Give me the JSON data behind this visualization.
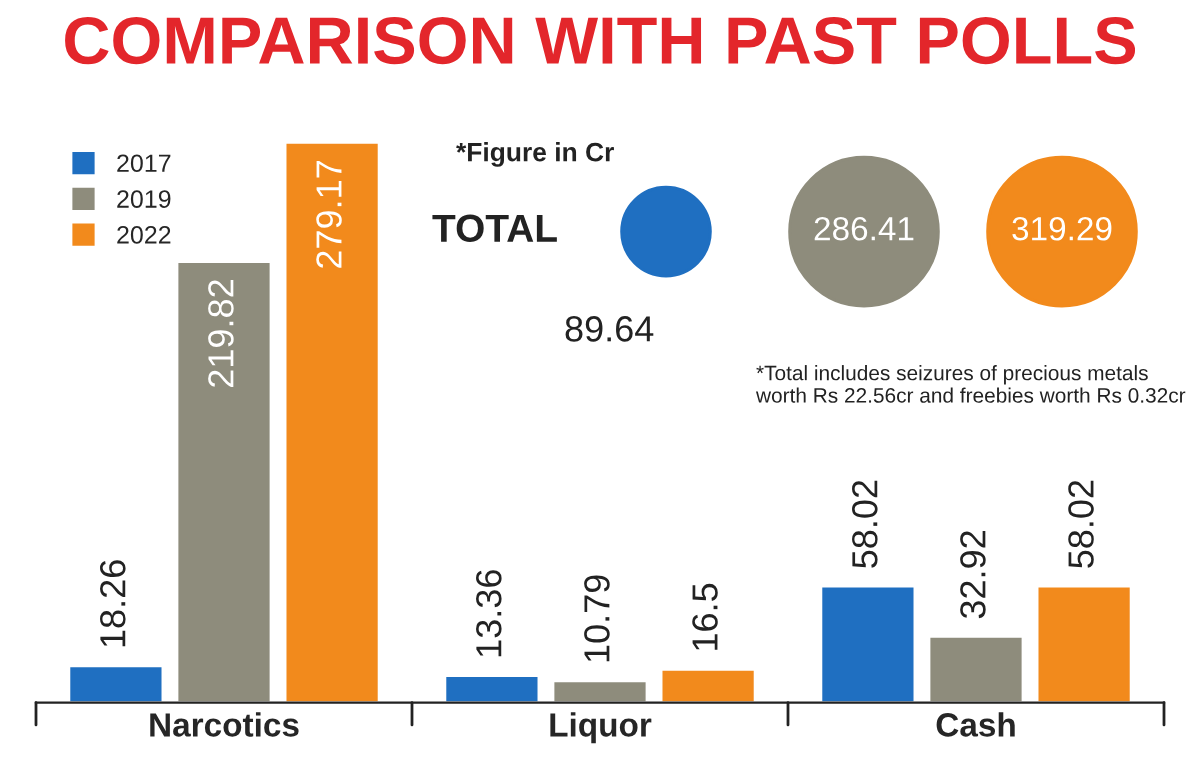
{
  "chart_data": {
    "type": "bar",
    "title": "COMPARISON WITH PAST POLLS",
    "categories": [
      "Narcotics",
      "Liquor",
      "Cash"
    ],
    "series": [
      {
        "name": "2017",
        "color": "#1f6fc1",
        "values": [
          18.26,
          13.36,
          58.02
        ]
      },
      {
        "name": "2019",
        "color": "#8e8c7c",
        "values": [
          219.82,
          10.79,
          32.92
        ]
      },
      {
        "name": "2022",
        "color": "#f28a1c",
        "values": [
          279.17,
          16.5,
          58.02
        ]
      }
    ],
    "data_labels": true,
    "legend": "top left",
    "grid": false,
    "annotations": [
      "*Figure in Cr",
      "TOTAL",
      "89.64",
      "286.41",
      "319.29",
      "*Total includes seizures of precious metals worth Rs 22.56cr and freebies worth Rs 0.32cr"
    ]
  }
}
